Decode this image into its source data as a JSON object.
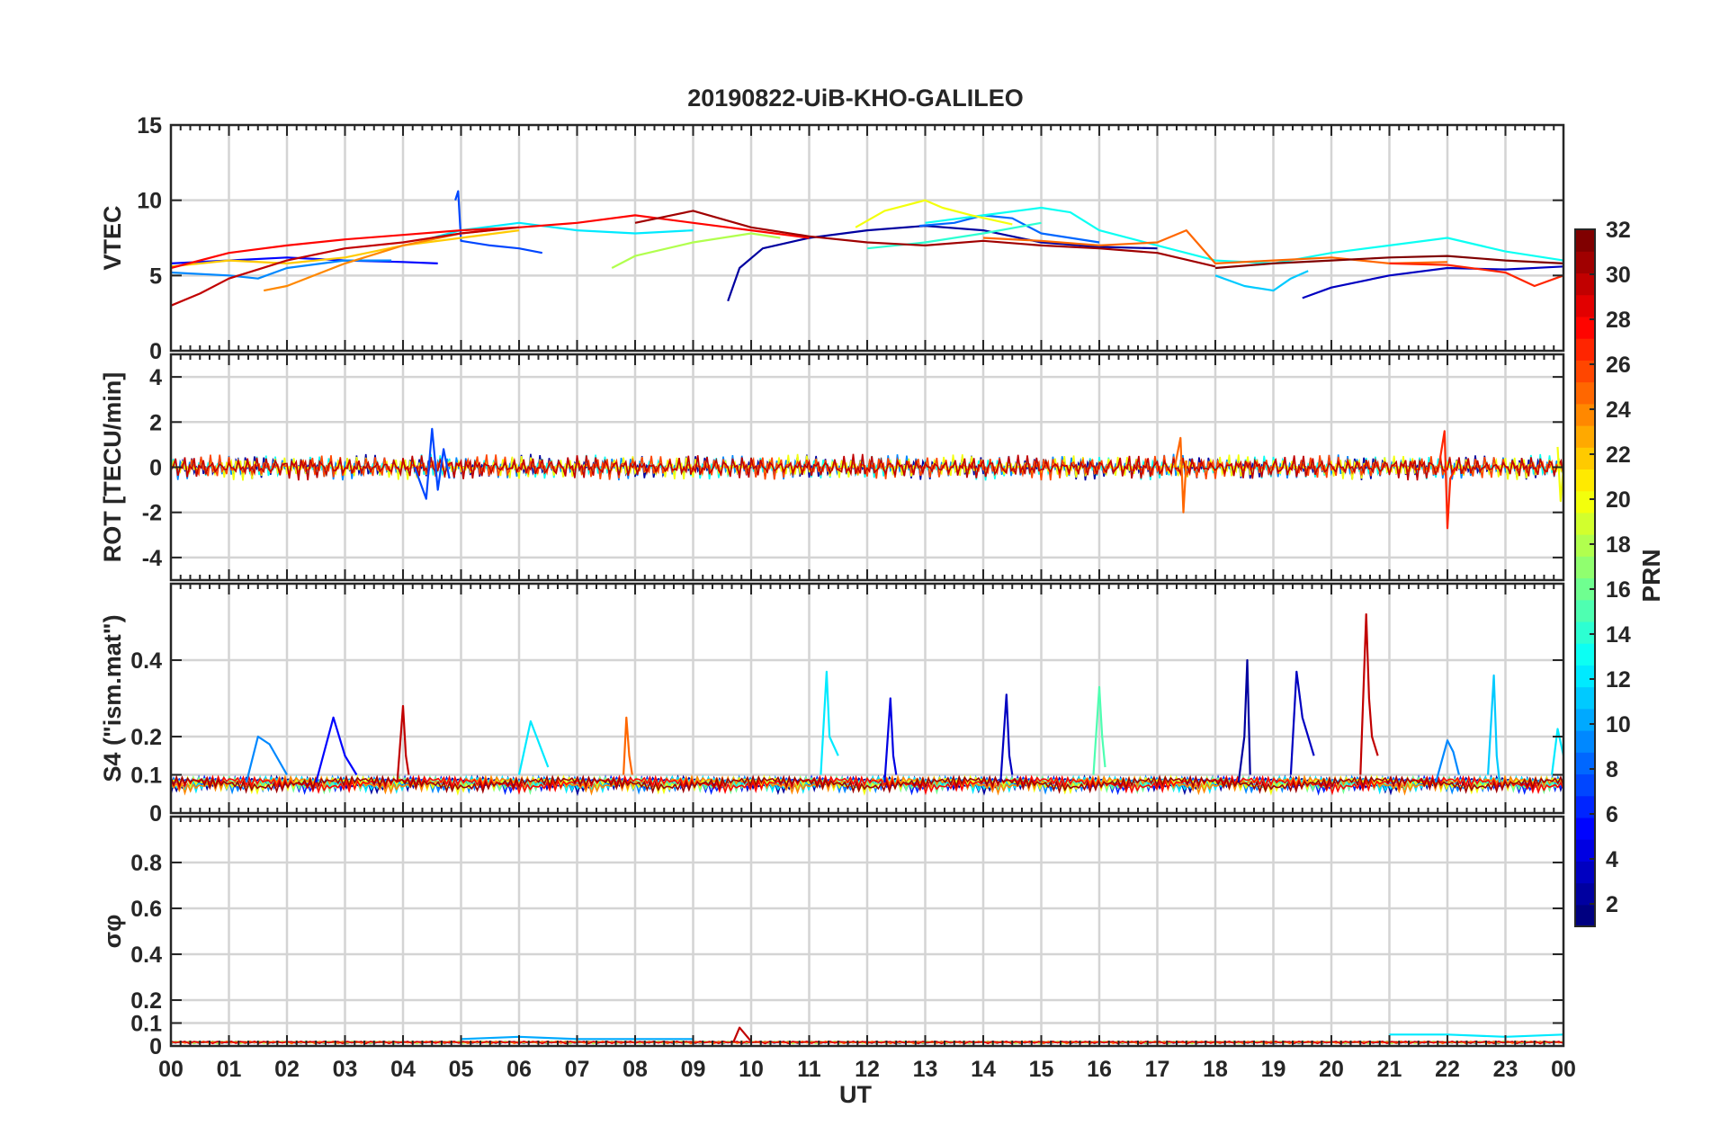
{
  "figure": {
    "title": "20190822-UiB-KHO-GALILEO",
    "xlabel": "UT",
    "xtick_labels": [
      "00",
      "01",
      "02",
      "03",
      "04",
      "05",
      "06",
      "07",
      "08",
      "09",
      "10",
      "11",
      "12",
      "13",
      "14",
      "15",
      "16",
      "17",
      "18",
      "19",
      "20",
      "21",
      "22",
      "23",
      "00"
    ]
  },
  "colorbar": {
    "label": "PRN",
    "tick_labels": [
      "2",
      "4",
      "6",
      "8",
      "10",
      "12",
      "14",
      "16",
      "18",
      "20",
      "22",
      "24",
      "26",
      "28",
      "30",
      "32"
    ],
    "range": [
      1,
      32
    ],
    "colormap": "jet"
  },
  "chart_data": [
    {
      "id": "vtec",
      "type": "line",
      "ylabel": "VTEC",
      "ylim": [
        0,
        15
      ],
      "yticks": [
        0,
        5,
        10,
        15
      ],
      "xlim": [
        0,
        24
      ],
      "grid": true,
      "series": [
        {
          "prn": 2,
          "x": [
            9.6,
            9.8,
            10.2,
            11.0,
            12.0,
            13.0,
            14.0,
            15.0,
            16.0,
            17.0
          ],
          "y": [
            3.3,
            5.5,
            6.8,
            7.5,
            8.0,
            8.3,
            8.0,
            7.2,
            6.9,
            6.8
          ]
        },
        {
          "prn": 3,
          "x": [
            19.5,
            20.0,
            21.0,
            22.0,
            23.0,
            24.0
          ],
          "y": [
            3.5,
            4.2,
            5.0,
            5.5,
            5.4,
            5.6
          ]
        },
        {
          "prn": 5,
          "x": [
            0.0,
            1.0,
            2.0,
            3.0,
            4.0,
            4.6
          ],
          "y": [
            5.8,
            6.0,
            6.2,
            6.0,
            5.9,
            5.8
          ]
        },
        {
          "prn": 7,
          "x": [
            4.9,
            4.95,
            5.0,
            5.5,
            6.0,
            6.4
          ],
          "y": [
            10.0,
            10.6,
            7.3,
            7.0,
            6.8,
            6.5
          ]
        },
        {
          "prn": 8,
          "x": [
            12.9,
            13.5,
            14.0,
            14.5,
            15.0,
            16.0
          ],
          "y": [
            8.3,
            8.5,
            9.0,
            8.8,
            7.8,
            7.2
          ]
        },
        {
          "prn": 9,
          "x": [
            0.0,
            1.0,
            1.5,
            2.0,
            3.0,
            3.8
          ],
          "y": [
            5.2,
            5.0,
            4.8,
            5.5,
            6.0,
            6.0
          ]
        },
        {
          "prn": 11,
          "x": [
            18.0,
            18.5,
            19.0,
            19.3,
            19.6
          ],
          "y": [
            5.0,
            4.3,
            4.0,
            4.8,
            5.3
          ]
        },
        {
          "prn": 12,
          "x": [
            4.5,
            5.0,
            6.0,
            7.0,
            8.0,
            9.0
          ],
          "y": [
            7.5,
            8.0,
            8.5,
            8.0,
            7.8,
            8.0
          ]
        },
        {
          "prn": 13,
          "x": [
            13.0,
            14.0,
            15.0,
            15.5,
            16.0,
            17.0,
            18.0,
            19.0,
            20.0,
            21.0,
            22.0,
            23.0,
            24.0
          ],
          "y": [
            8.5,
            9.0,
            9.5,
            9.2,
            8.0,
            7.0,
            6.0,
            5.8,
            6.5,
            7.0,
            7.5,
            6.6,
            6.0
          ]
        },
        {
          "prn": 14,
          "x": [
            12.0,
            13.0,
            14.0,
            15.0
          ],
          "y": [
            6.8,
            7.2,
            7.8,
            8.5
          ]
        },
        {
          "prn": 18,
          "x": [
            7.6,
            8.0,
            9.0,
            10.0,
            10.5
          ],
          "y": [
            5.5,
            6.3,
            7.2,
            7.8,
            7.5
          ]
        },
        {
          "prn": 20,
          "x": [
            11.8,
            12.3,
            12.6,
            13.0,
            13.3,
            13.8,
            14.5
          ],
          "y": [
            8.2,
            9.3,
            9.6,
            10.0,
            9.5,
            9.0,
            8.4
          ]
        },
        {
          "prn": 22,
          "x": [
            0.0,
            1.0,
            2.0,
            3.0,
            4.0,
            5.0,
            6.0
          ],
          "y": [
            5.6,
            6.0,
            5.8,
            6.2,
            7.0,
            7.5,
            8.0
          ]
        },
        {
          "prn": 24,
          "x": [
            1.6,
            2.0,
            3.0,
            4.0,
            5.0,
            5.5
          ],
          "y": [
            4.0,
            4.3,
            5.8,
            7.0,
            7.8,
            8.0
          ]
        },
        {
          "prn": 25,
          "x": [
            14.0,
            15.0,
            16.0,
            17.0,
            17.5,
            18.0,
            19.0,
            20.0,
            21.0,
            22.0
          ],
          "y": [
            7.5,
            7.3,
            7.0,
            7.2,
            8.0,
            5.8,
            6.0,
            6.2,
            5.8,
            5.9
          ]
        },
        {
          "prn": 27,
          "x": [
            21.0,
            22.0,
            23.0,
            23.5,
            24.0
          ],
          "y": [
            5.8,
            5.7,
            5.2,
            4.3,
            5.0
          ]
        },
        {
          "prn": 28,
          "x": [
            0.0,
            1.0,
            2.0,
            3.0,
            4.0,
            5.0,
            6.0,
            7.0,
            8.0,
            9.0,
            10.0,
            11.0
          ],
          "y": [
            5.5,
            6.5,
            7.0,
            7.4,
            7.7,
            8.0,
            8.2,
            8.5,
            9.0,
            8.5,
            8.0,
            7.5
          ]
        },
        {
          "prn": 30,
          "x": [
            0.0,
            0.5,
            1.0,
            2.0,
            3.0,
            4.0,
            5.0,
            6.0
          ],
          "y": [
            3.0,
            3.8,
            4.8,
            6.0,
            6.8,
            7.2,
            7.8,
            8.2
          ]
        },
        {
          "prn": 31,
          "x": [
            8.0,
            9.0,
            10.0,
            11.0,
            12.0,
            13.0,
            14.0,
            15.0,
            16.0,
            17.0,
            18.0
          ],
          "y": [
            8.5,
            9.3,
            8.2,
            7.6,
            7.2,
            7.0,
            7.3,
            7.0,
            6.8,
            6.5,
            5.6
          ]
        },
        {
          "prn": 32,
          "x": [
            18.0,
            19.0,
            20.0,
            21.0,
            22.0,
            23.0,
            24.0
          ],
          "y": [
            5.5,
            5.8,
            6.0,
            6.2,
            6.3,
            6.0,
            5.8
          ]
        }
      ]
    },
    {
      "id": "rot",
      "type": "line",
      "ylabel": "ROT [TECU/min]",
      "ylim": [
        -5,
        5
      ],
      "yticks": [
        -4,
        -2,
        0,
        2,
        4
      ],
      "xlim": [
        0,
        24
      ],
      "grid": true,
      "series": [
        {
          "prn": 7,
          "x": [
            4.2,
            4.4,
            4.5,
            4.6,
            4.7,
            4.8
          ],
          "y": [
            0.0,
            -1.4,
            1.7,
            -1.0,
            0.8,
            -0.5
          ]
        },
        {
          "prn": 25,
          "x": [
            17.3,
            17.4,
            17.45,
            17.5
          ],
          "y": [
            0.0,
            1.3,
            -2.0,
            0.3
          ]
        },
        {
          "prn": 27,
          "x": [
            21.85,
            21.95,
            22.0,
            22.05,
            22.15
          ],
          "y": [
            0.0,
            1.6,
            -2.7,
            -0.5,
            0.0
          ]
        },
        {
          "prn": 20,
          "x": [
            23.9,
            23.95,
            24.0
          ],
          "y": [
            0.9,
            -1.5,
            0.0
          ]
        }
      ]
    },
    {
      "id": "s4",
      "type": "line",
      "ylabel": "S4 (\"ism.mat\")",
      "ylim": [
        0,
        0.6
      ],
      "yticks": [
        0,
        0.1,
        0.2,
        0.4
      ],
      "xlim": [
        0,
        24
      ],
      "grid": true,
      "series": [
        {
          "prn": 2,
          "x": [
            18.4,
            18.5,
            18.55,
            18.6
          ],
          "y": [
            0.08,
            0.2,
            0.4,
            0.1
          ]
        },
        {
          "prn": 3,
          "x": [
            19.3,
            19.4,
            19.5,
            19.7
          ],
          "y": [
            0.1,
            0.37,
            0.25,
            0.15
          ]
        },
        {
          "prn": 30,
          "x": [
            20.5,
            20.6,
            20.65,
            20.7,
            20.8
          ],
          "y": [
            0.1,
            0.52,
            0.3,
            0.2,
            0.15
          ]
        },
        {
          "prn": 12,
          "x": [
            11.2,
            11.3,
            11.35,
            11.5
          ],
          "y": [
            0.1,
            0.37,
            0.2,
            0.15
          ]
        },
        {
          "prn": 15,
          "x": [
            15.9,
            16.0,
            16.05,
            16.1
          ],
          "y": [
            0.1,
            0.33,
            0.2,
            0.12
          ]
        },
        {
          "prn": 4,
          "x": [
            12.3,
            12.4,
            12.45,
            12.5
          ],
          "y": [
            0.08,
            0.3,
            0.15,
            0.1
          ]
        },
        {
          "prn": 30,
          "x": [
            3.9,
            4.0,
            4.05,
            4.1
          ],
          "y": [
            0.08,
            0.28,
            0.15,
            0.1
          ]
        },
        {
          "prn": 3,
          "x": [
            14.3,
            14.4,
            14.45,
            14.5
          ],
          "y": [
            0.08,
            0.31,
            0.15,
            0.1
          ]
        },
        {
          "prn": 25,
          "x": [
            7.8,
            7.85,
            7.9,
            7.95
          ],
          "y": [
            0.1,
            0.25,
            0.15,
            0.1
          ]
        },
        {
          "prn": 12,
          "x": [
            6.0,
            6.2,
            6.3,
            6.5
          ],
          "y": [
            0.1,
            0.24,
            0.2,
            0.12
          ]
        },
        {
          "prn": 11,
          "x": [
            22.7,
            22.8,
            22.85,
            22.9
          ],
          "y": [
            0.1,
            0.36,
            0.15,
            0.08
          ]
        },
        {
          "prn": 9,
          "x": [
            21.8,
            22.0,
            22.1,
            22.2
          ],
          "y": [
            0.08,
            0.19,
            0.16,
            0.1
          ]
        },
        {
          "prn": 5,
          "x": [
            2.5,
            2.8,
            3.0,
            3.2
          ],
          "y": [
            0.08,
            0.25,
            0.15,
            0.1
          ]
        },
        {
          "prn": 9,
          "x": [
            1.3,
            1.5,
            1.7,
            2.0
          ],
          "y": [
            0.08,
            0.2,
            0.18,
            0.1
          ]
        },
        {
          "prn": 12,
          "x": [
            23.8,
            23.9,
            24.0
          ],
          "y": [
            0.1,
            0.22,
            0.15
          ]
        }
      ]
    },
    {
      "id": "sigma_phi",
      "type": "line",
      "ylabel": "σφ",
      "ylim": [
        0,
        1
      ],
      "yticks": [
        0,
        0.1,
        0.2,
        0.4,
        0.6,
        0.8
      ],
      "xlim": [
        0,
        24
      ],
      "grid": true,
      "series": [
        {
          "prn": 10,
          "x": [
            5.0,
            6.0,
            7.0,
            8.0,
            9.0
          ],
          "y": [
            0.03,
            0.04,
            0.03,
            0.03,
            0.03
          ]
        },
        {
          "prn": 30,
          "x": [
            9.7,
            9.8,
            9.9,
            10.0
          ],
          "y": [
            0.02,
            0.08,
            0.05,
            0.02
          ]
        },
        {
          "prn": 12,
          "x": [
            21.0,
            22.0,
            23.0,
            24.0
          ],
          "y": [
            0.05,
            0.05,
            0.04,
            0.05
          ]
        }
      ]
    }
  ]
}
